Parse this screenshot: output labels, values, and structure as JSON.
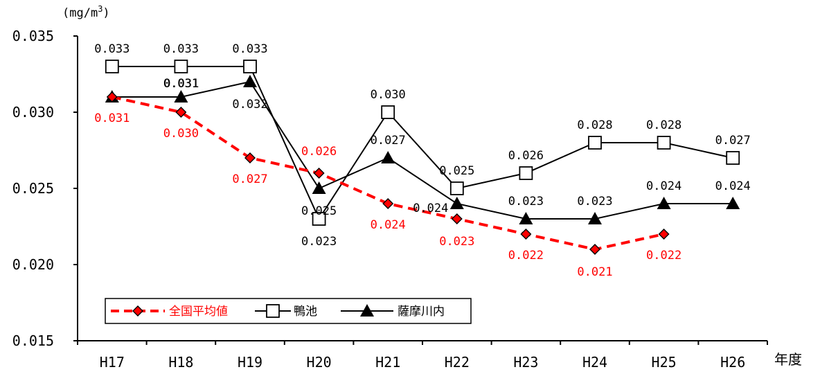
{
  "chart_data": {
    "type": "line",
    "unit_label": "(mg/m3)",
    "x_axis_title": "年度",
    "categories": [
      "H17",
      "H18",
      "H19",
      "H20",
      "H21",
      "H22",
      "H23",
      "H24",
      "H25",
      "H26"
    ],
    "y_ticks": [
      "0.015",
      "0.020",
      "0.025",
      "0.030",
      "0.035"
    ],
    "ylim": [
      0.015,
      0.035
    ],
    "grid": false,
    "legend_position": "bottom-left",
    "series": [
      {
        "name": "全国平均値",
        "color": "#ff0000",
        "marker": "diamond",
        "line_style": "dashed",
        "values": [
          0.031,
          0.03,
          0.027,
          0.026,
          0.024,
          0.023,
          0.022,
          0.021,
          0.022,
          null
        ],
        "labels": [
          "0.031",
          "0.030",
          "0.027",
          "0.026",
          "0.024",
          "0.023",
          "0.022",
          "0.021",
          "0.022",
          null
        ]
      },
      {
        "name": "鴨池",
        "color": "#000000",
        "marker": "square",
        "line_style": "solid",
        "values": [
          0.033,
          0.033,
          0.033,
          0.023,
          0.03,
          0.025,
          0.026,
          0.028,
          0.028,
          0.027
        ],
        "labels": [
          "0.033",
          "0.033",
          "0.033",
          "0.023",
          "0.030",
          "0.025",
          "0.026",
          "0.028",
          "0.028",
          "0.027"
        ]
      },
      {
        "name": "薩摩川内",
        "color": "#000000",
        "marker": "triangle",
        "line_style": "solid",
        "values": [
          0.031,
          0.031,
          0.032,
          0.025,
          0.027,
          0.024,
          0.023,
          0.023,
          0.024,
          0.024
        ],
        "labels": [
          "0.031",
          "0.031",
          "0.032",
          "0.025",
          "0.027",
          "0.024",
          "0.023",
          "0.023",
          "0.024",
          "0.024"
        ]
      }
    ]
  }
}
